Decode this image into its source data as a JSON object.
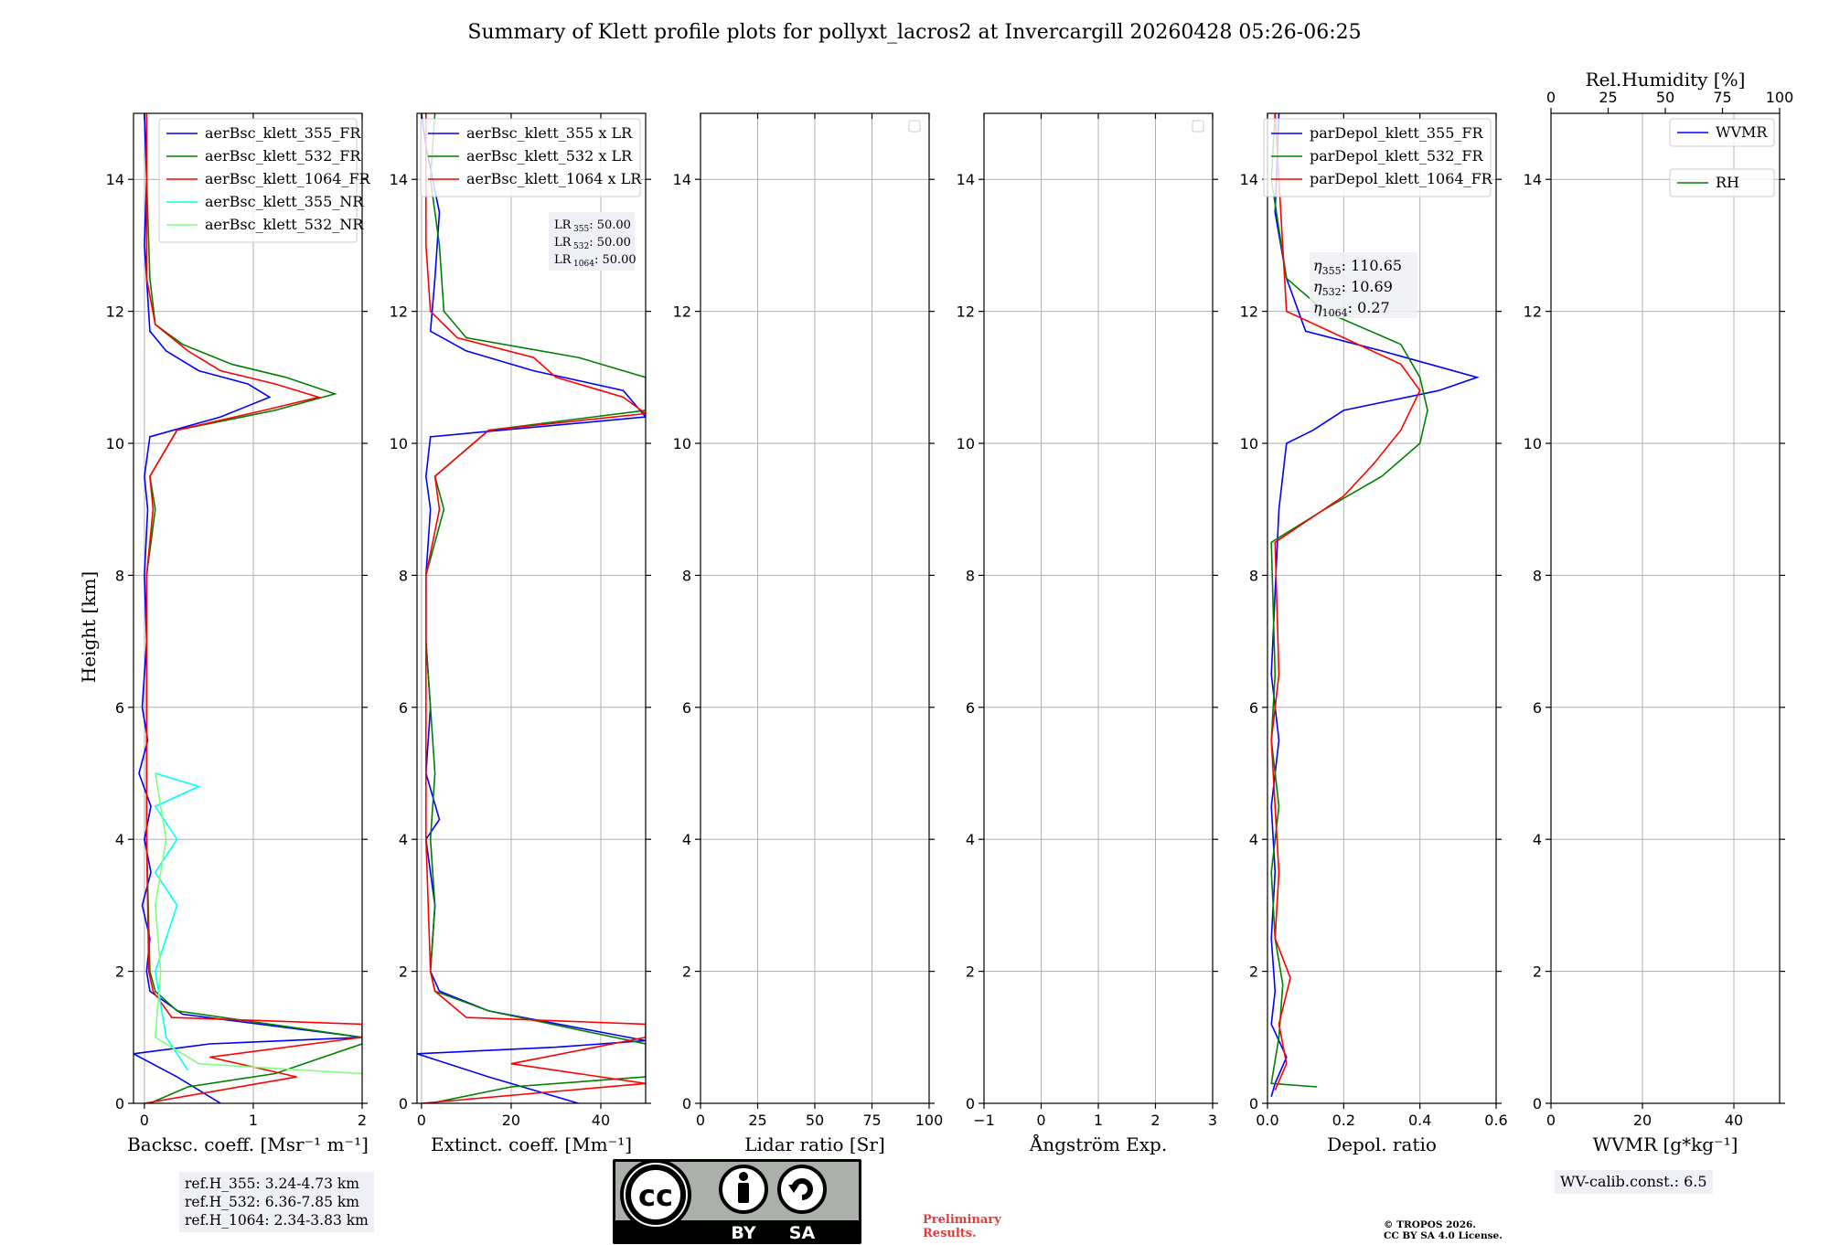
{
  "figure": {
    "title": "Summary of Klett profile plots for pollyxt_lacros2 at Invercargill 20260428 05:26-06:25",
    "ylabel": "Height [km]"
  },
  "chart_data": [
    {
      "type": "line",
      "panel": "backscatter",
      "xlabel": "Backsc. coeff. [Msr⁻¹ m⁻¹]",
      "xlim": [
        -0.1,
        2
      ],
      "xticks": [
        0,
        1,
        2
      ],
      "ylim": [
        0,
        15
      ],
      "yticks": [
        0,
        2,
        4,
        6,
        8,
        10,
        12,
        14
      ],
      "legend": "upper-right",
      "series": [
        {
          "name": "aerBsc_klett_355_FR",
          "color": "#0000ff",
          "profile": [
            [
              0.7,
              0
            ],
            [
              0.3,
              0.4
            ],
            [
              -0.1,
              0.75
            ],
            [
              0.6,
              0.9
            ],
            [
              2.0,
              1.0
            ],
            [
              0.35,
              1.35
            ],
            [
              0.05,
              1.7
            ],
            [
              0.02,
              2.0
            ],
            [
              0.05,
              2.5
            ],
            [
              -0.02,
              3.0
            ],
            [
              0.06,
              3.5
            ],
            [
              0.0,
              4.0
            ],
            [
              0.06,
              4.5
            ],
            [
              -0.05,
              5.0
            ],
            [
              0.03,
              5.5
            ],
            [
              -0.02,
              6.0
            ],
            [
              0.02,
              7.0
            ],
            [
              0.0,
              8.0
            ],
            [
              0.03,
              9.0
            ],
            [
              0.0,
              9.5
            ],
            [
              0.05,
              10.1
            ],
            [
              0.7,
              10.4
            ],
            [
              1.15,
              10.7
            ],
            [
              0.95,
              10.9
            ],
            [
              0.5,
              11.1
            ],
            [
              0.2,
              11.4
            ],
            [
              0.05,
              11.7
            ],
            [
              0.02,
              12.5
            ],
            [
              0.0,
              13.0
            ],
            [
              0.02,
              14.0
            ],
            [
              0.0,
              15.0
            ]
          ]
        },
        {
          "name": "aerBsc_klett_532_FR",
          "color": "#008000",
          "profile": [
            [
              0.05,
              0
            ],
            [
              0.4,
              0.25
            ],
            [
              1.2,
              0.45
            ],
            [
              2.0,
              0.9
            ],
            [
              2.0,
              1.0
            ],
            [
              0.3,
              1.4
            ],
            [
              0.1,
              1.7
            ],
            [
              0.05,
              2.0
            ],
            [
              0.02,
              4.0
            ],
            [
              0.02,
              6.0
            ],
            [
              0.02,
              8.0
            ],
            [
              0.1,
              9.0
            ],
            [
              0.05,
              9.5
            ],
            [
              0.3,
              10.2
            ],
            [
              1.2,
              10.5
            ],
            [
              1.75,
              10.75
            ],
            [
              1.3,
              11.0
            ],
            [
              0.8,
              11.2
            ],
            [
              0.35,
              11.5
            ],
            [
              0.1,
              11.8
            ],
            [
              0.05,
              12.5
            ],
            [
              0.02,
              14.0
            ],
            [
              0.02,
              15.0
            ]
          ]
        },
        {
          "name": "aerBsc_klett_1064_FR",
          "color": "#ff0000",
          "profile": [
            [
              0.0,
              0
            ],
            [
              1.4,
              0.4
            ],
            [
              0.6,
              0.7
            ],
            [
              2.0,
              1.0
            ],
            [
              2.0,
              1.2
            ],
            [
              0.25,
              1.3
            ],
            [
              0.08,
              1.7
            ],
            [
              0.04,
              2.0
            ],
            [
              0.02,
              4.0
            ],
            [
              0.02,
              6.0
            ],
            [
              0.02,
              8.0
            ],
            [
              0.08,
              9.0
            ],
            [
              0.05,
              9.5
            ],
            [
              0.3,
              10.2
            ],
            [
              1.1,
              10.5
            ],
            [
              1.6,
              10.7
            ],
            [
              1.2,
              10.9
            ],
            [
              0.7,
              11.1
            ],
            [
              0.4,
              11.4
            ],
            [
              0.1,
              11.8
            ],
            [
              0.02,
              12.5
            ],
            [
              0.02,
              15.0
            ]
          ]
        },
        {
          "name": "aerBsc_klett_355_NR",
          "color": "#00ffff",
          "profile": [
            [
              0.4,
              0.5
            ],
            [
              0.2,
              1.0
            ],
            [
              0.1,
              2.0
            ],
            [
              0.3,
              3.0
            ],
            [
              0.1,
              3.5
            ],
            [
              0.3,
              4.0
            ],
            [
              0.1,
              4.5
            ],
            [
              0.5,
              4.8
            ],
            [
              0.1,
              5.0
            ]
          ]
        },
        {
          "name": "aerBsc_klett_532_NR",
          "color": "#7fff7f",
          "profile": [
            [
              2.0,
              0.45
            ],
            [
              0.5,
              0.6
            ],
            [
              0.1,
              1.0
            ],
            [
              0.15,
              2.0
            ],
            [
              0.1,
              3.0
            ],
            [
              0.2,
              4.0
            ],
            [
              0.1,
              5.0
            ]
          ]
        }
      ],
      "ref_heights": [
        "ref.H_355: 3.24-4.73 km",
        "ref.H_532: 6.36-7.85 km",
        "ref.H_1064: 2.34-3.83 km"
      ]
    },
    {
      "type": "line",
      "panel": "extinction",
      "xlabel": "Extinct. coeff. [Mm⁻¹]",
      "xlim": [
        -1,
        50
      ],
      "xticks": [
        0,
        20,
        40
      ],
      "ylim": [
        0,
        15
      ],
      "yticks": [
        0,
        2,
        4,
        6,
        8,
        10,
        12,
        14
      ],
      "legend": "upper-right",
      "series": [
        {
          "name": "aerBsc_klett_355 x LR",
          "color": "#0000ff",
          "profile": [
            [
              35,
              0
            ],
            [
              15,
              0.4
            ],
            [
              -1,
              0.75
            ],
            [
              30,
              0.85
            ],
            [
              50,
              0.95
            ],
            [
              15,
              1.4
            ],
            [
              4,
              1.7
            ],
            [
              2,
              2.0
            ],
            [
              3,
              3.0
            ],
            [
              1,
              4.0
            ],
            [
              4,
              4.3
            ],
            [
              1,
              5.0
            ],
            [
              2,
              6.0
            ],
            [
              1,
              7.0
            ],
            [
              1,
              8.0
            ],
            [
              2,
              9.0
            ],
            [
              1,
              9.5
            ],
            [
              2,
              10.1
            ],
            [
              50,
              10.4
            ],
            [
              45,
              10.8
            ],
            [
              25,
              11.1
            ],
            [
              10,
              11.4
            ],
            [
              2,
              11.7
            ],
            [
              3,
              12.5
            ],
            [
              4,
              13.5
            ],
            [
              1,
              14.5
            ],
            [
              0,
              15
            ]
          ]
        },
        {
          "name": "aerBsc_klett_532 x LR",
          "color": "#008000",
          "profile": [
            [
              2,
              0
            ],
            [
              20,
              0.25
            ],
            [
              50,
              0.4
            ],
            [
              50,
              0.9
            ],
            [
              15,
              1.4
            ],
            [
              3,
              1.7
            ],
            [
              2,
              2.0
            ],
            [
              3,
              3.0
            ],
            [
              2,
              4.0
            ],
            [
              3,
              5.0
            ],
            [
              2,
              6.0
            ],
            [
              1,
              7.0
            ],
            [
              1,
              8.0
            ],
            [
              5,
              9.0
            ],
            [
              3,
              9.5
            ],
            [
              15,
              10.2
            ],
            [
              50,
              10.5
            ],
            [
              50,
              11.0
            ],
            [
              35,
              11.3
            ],
            [
              10,
              11.6
            ],
            [
              5,
              12.0
            ],
            [
              4,
              13.0
            ],
            [
              2,
              14.0
            ],
            [
              3,
              15.0
            ]
          ]
        },
        {
          "name": "aerBsc_klett_1064 x LR",
          "color": "#ff0000",
          "profile": [
            [
              0,
              0
            ],
            [
              50,
              0.3
            ],
            [
              20,
              0.6
            ],
            [
              50,
              1.0
            ],
            [
              50,
              1.2
            ],
            [
              10,
              1.3
            ],
            [
              3,
              1.7
            ],
            [
              2,
              2.0
            ],
            [
              1,
              4.0
            ],
            [
              1,
              6.0
            ],
            [
              1,
              8.0
            ],
            [
              4,
              9.0
            ],
            [
              3,
              9.5
            ],
            [
              15,
              10.2
            ],
            [
              50,
              10.45
            ],
            [
              45,
              10.7
            ],
            [
              30,
              11.0
            ],
            [
              25,
              11.3
            ],
            [
              8,
              11.6
            ],
            [
              2,
              12.0
            ],
            [
              1,
              13.0
            ],
            [
              1,
              15.0
            ]
          ]
        }
      ],
      "lidar_ratios": [
        "50.00",
        "50.00",
        "50.00"
      ]
    },
    {
      "type": "line",
      "panel": "lidar-ratio",
      "xlabel": "Lidar ratio [Sr]",
      "xlim": [
        0,
        100
      ],
      "xticks": [
        0,
        25,
        50,
        75,
        100
      ],
      "ylim": [
        0,
        15
      ],
      "yticks": [
        0,
        2,
        4,
        6,
        8,
        10,
        12,
        14
      ],
      "series": []
    },
    {
      "type": "line",
      "panel": "angstrom",
      "xlabel": "Ångström Exp.",
      "xlim": [
        -1,
        3
      ],
      "xticks": [
        -1,
        0,
        1,
        2,
        3
      ],
      "ylim": [
        0,
        15
      ],
      "yticks": [
        0,
        2,
        4,
        6,
        8,
        10,
        12,
        14
      ],
      "series": []
    },
    {
      "type": "line",
      "panel": "depol",
      "xlabel": "Depol. ratio",
      "xlim": [
        0,
        0.6
      ],
      "xticks": [
        0.0,
        0.2,
        0.4,
        0.6
      ],
      "ylim": [
        0,
        15
      ],
      "yticks": [
        0,
        2,
        4,
        6,
        8,
        10,
        12,
        14
      ],
      "legend": "upper-right",
      "series": [
        {
          "name": "parDepol_klett_355_FR",
          "color": "#0000ff",
          "profile": [
            [
              0.01,
              0.1
            ],
            [
              0.02,
              0.3
            ],
            [
              0.05,
              0.7
            ],
            [
              0.01,
              1.2
            ],
            [
              0.02,
              1.7
            ],
            [
              0.01,
              2.5
            ],
            [
              0.02,
              3.5
            ],
            [
              0.01,
              4.5
            ],
            [
              0.03,
              5.5
            ],
            [
              0.01,
              6.5
            ],
            [
              0.03,
              9.0
            ],
            [
              0.05,
              10.0
            ],
            [
              0.12,
              10.2
            ],
            [
              0.2,
              10.5
            ],
            [
              0.45,
              10.8
            ],
            [
              0.55,
              11.0
            ],
            [
              0.3,
              11.4
            ],
            [
              0.1,
              11.7
            ],
            [
              0.05,
              12.5
            ],
            [
              0.02,
              13.5
            ],
            [
              0.03,
              15.0
            ]
          ]
        },
        {
          "name": "parDepol_klett_532_FR",
          "color": "#008000",
          "profile": [
            [
              0.13,
              0.25
            ],
            [
              0.01,
              0.3
            ],
            [
              0.03,
              1.0
            ],
            [
              0.04,
              1.8
            ],
            [
              0.02,
              2.5
            ],
            [
              0.01,
              3.5
            ],
            [
              0.03,
              4.5
            ],
            [
              0.01,
              5.5
            ],
            [
              0.02,
              6.5
            ],
            [
              0.01,
              8.5
            ],
            [
              0.15,
              9.0
            ],
            [
              0.3,
              9.5
            ],
            [
              0.4,
              10.0
            ],
            [
              0.42,
              10.5
            ],
            [
              0.4,
              11.0
            ],
            [
              0.35,
              11.5
            ],
            [
              0.15,
              12.0
            ],
            [
              0.05,
              12.5
            ],
            [
              0.01,
              14.0
            ],
            [
              0.02,
              15.0
            ]
          ]
        },
        {
          "name": "parDepol_klett_1064_FR",
          "color": "#ff0000",
          "profile": [
            [
              0.02,
              0.2
            ],
            [
              0.05,
              0.6
            ],
            [
              0.03,
              1.2
            ],
            [
              0.06,
              1.9
            ],
            [
              0.02,
              2.5
            ],
            [
              0.03,
              3.5
            ],
            [
              0.02,
              4.5
            ],
            [
              0.01,
              5.5
            ],
            [
              0.03,
              6.5
            ],
            [
              0.02,
              8.5
            ],
            [
              0.2,
              9.2
            ],
            [
              0.28,
              9.7
            ],
            [
              0.35,
              10.2
            ],
            [
              0.4,
              10.8
            ],
            [
              0.35,
              11.2
            ],
            [
              0.2,
              11.6
            ],
            [
              0.05,
              12.0
            ],
            [
              0.02,
              15.0
            ]
          ]
        }
      ],
      "eta": [
        "110.65",
        "10.69",
        "0.27"
      ]
    },
    {
      "type": "line",
      "panel": "wvmr",
      "xlabel": "WVMR [g*kg⁻¹]",
      "xlim": [
        0,
        50
      ],
      "xticks": [
        0,
        20,
        40
      ],
      "x2label": "Rel.Humidity [%]",
      "x2lim": [
        0,
        100
      ],
      "x2ticks": [
        0,
        25,
        50,
        75,
        100
      ],
      "ylim": [
        0,
        15
      ],
      "yticks": [
        0,
        2,
        4,
        6,
        8,
        10,
        12,
        14
      ],
      "series": [
        {
          "name": "WVMR",
          "color": "#0000ff",
          "profile": []
        },
        {
          "name": "RH",
          "color": "#008000",
          "profile": []
        }
      ],
      "wv_calib": "WV-calib.const.: 6.5"
    }
  ],
  "footer": {
    "license_cc": "cc",
    "license_by": "BY",
    "license_sa": "SA",
    "prelim_1": "Preliminary",
    "prelim_2": "Results.",
    "copyright_1": "© TROPOS 2026.",
    "copyright_2": "CC BY SA 4.0 License."
  }
}
